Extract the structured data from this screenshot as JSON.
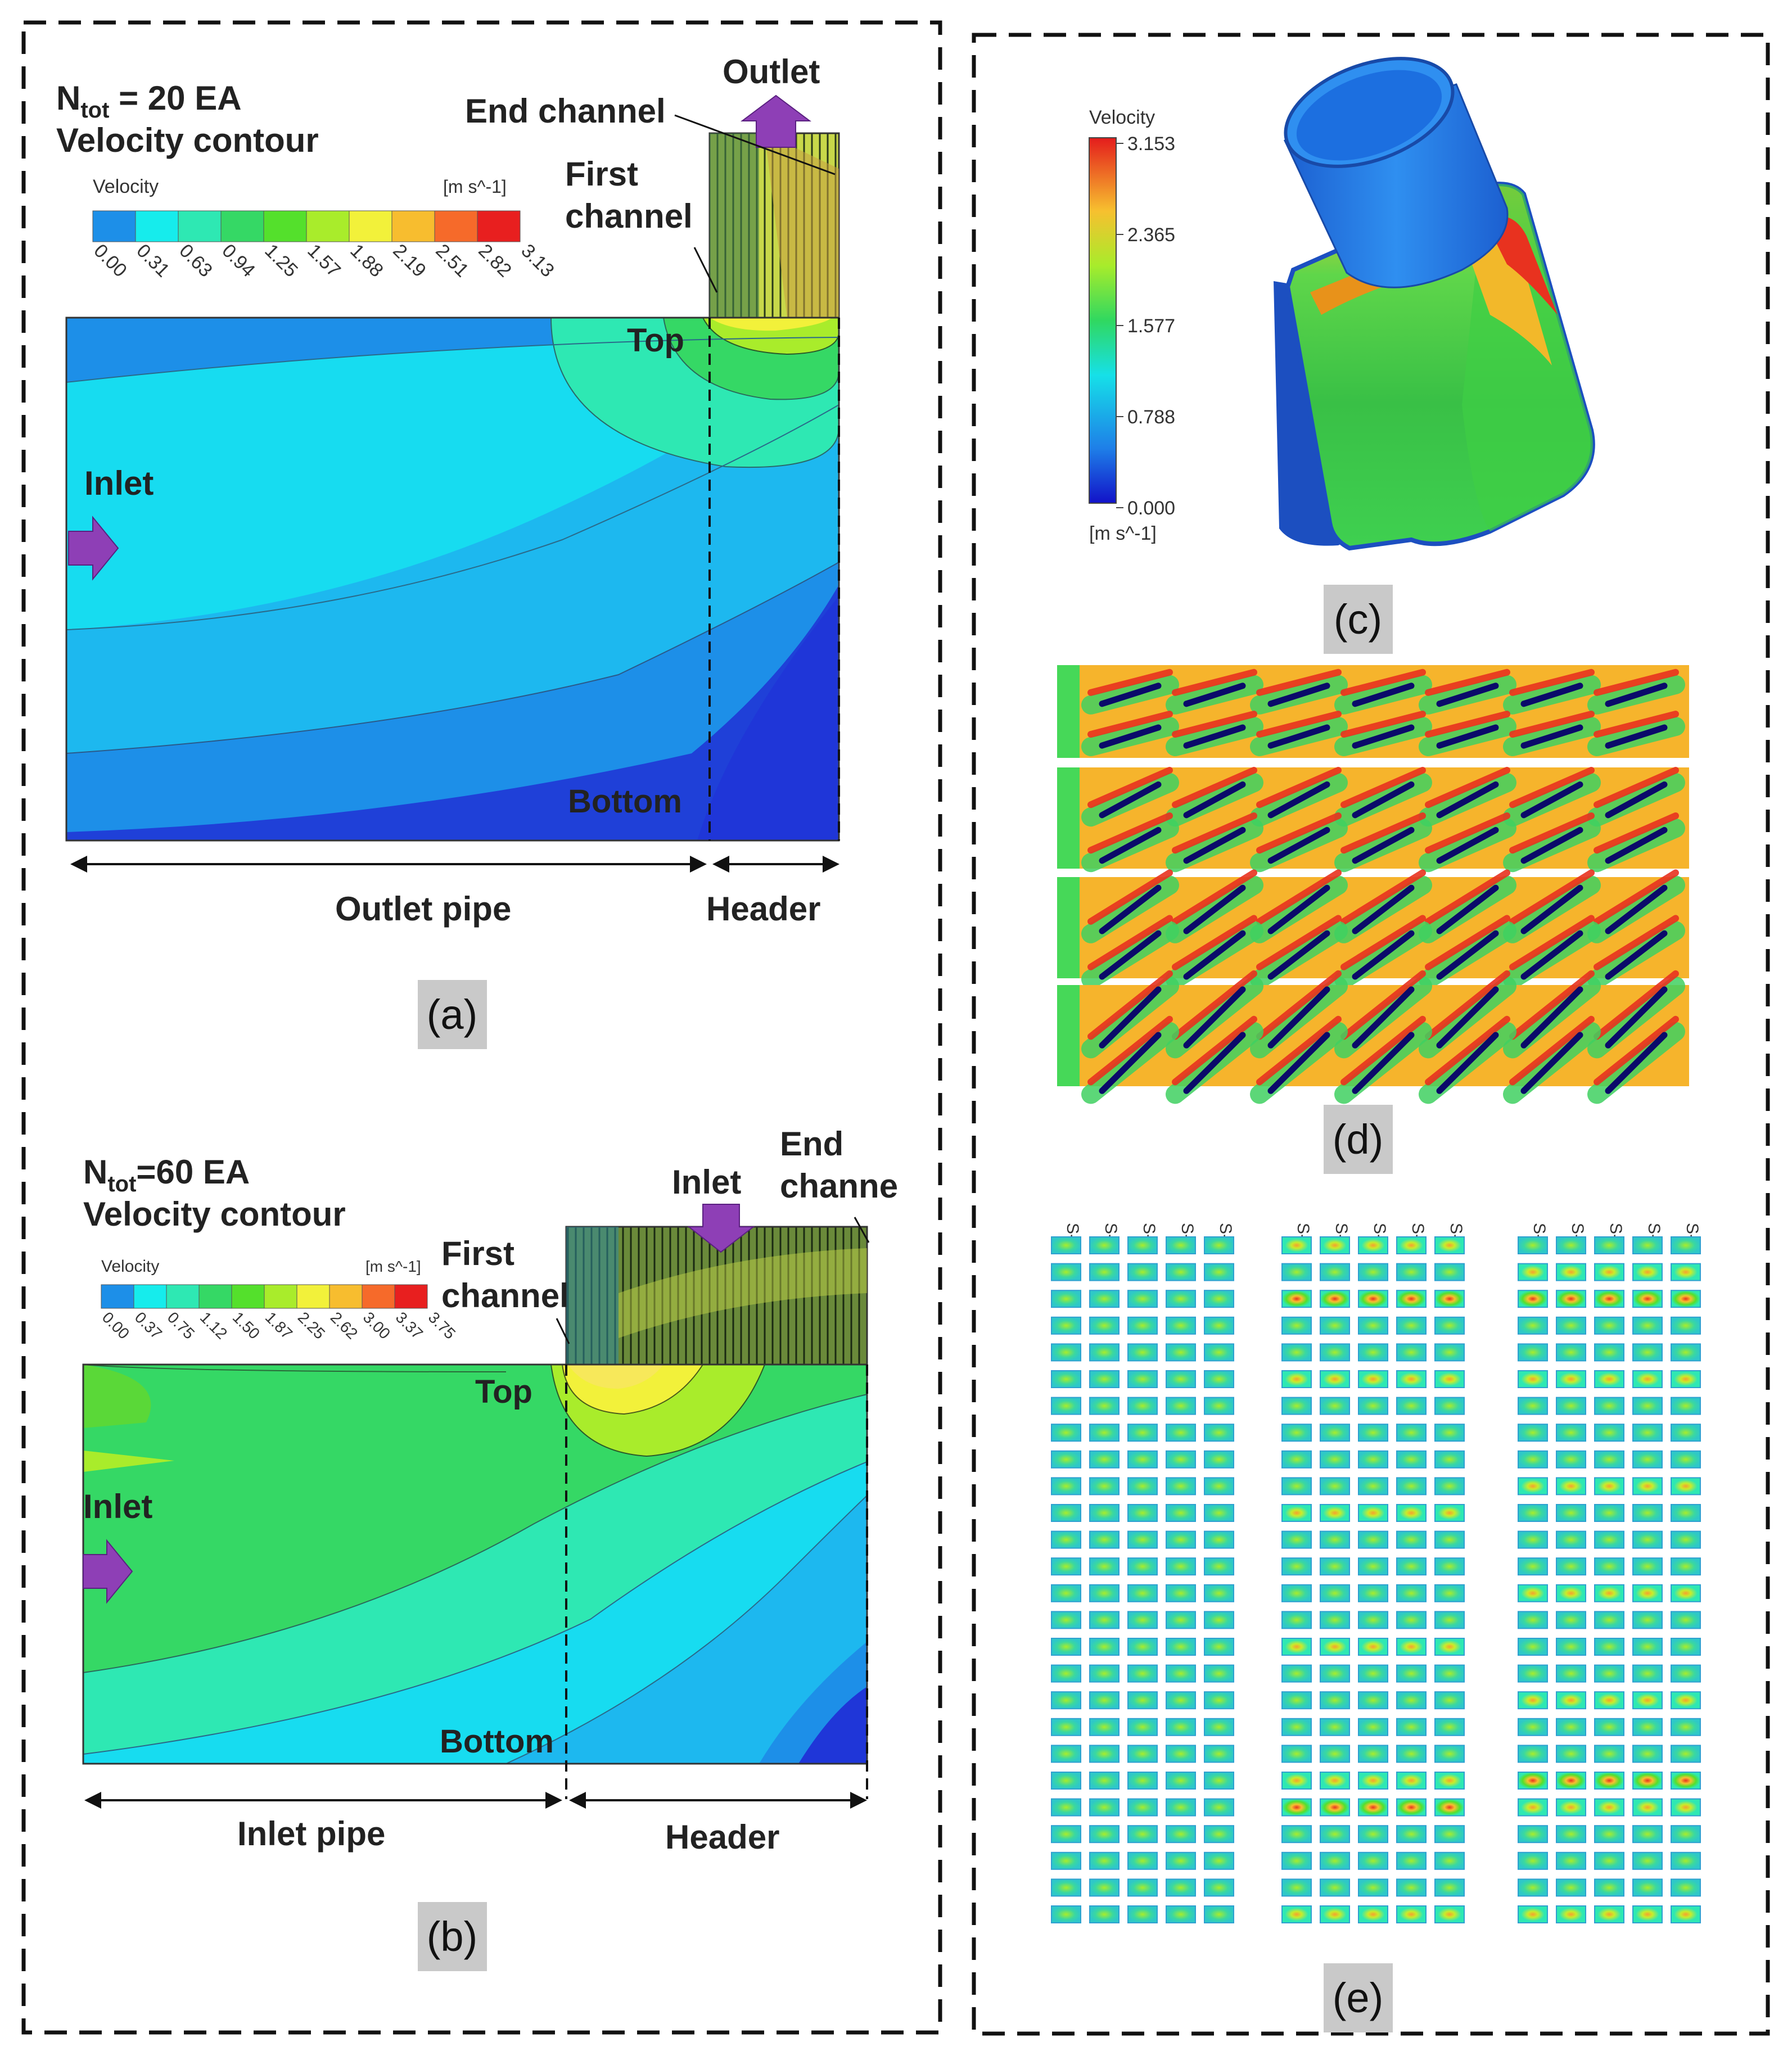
{
  "panel_a": {
    "caption": "(a)",
    "n_label_main": "N",
    "n_label_sub": "tot",
    "n_label_rest": " = 20 EA",
    "subtitle": "Velocity contour",
    "legend_title": "Velocity",
    "legend_unit": "[m s^-1]",
    "ticks": [
      "0.00",
      "0.31",
      "0.63",
      "0.94",
      "1.25",
      "1.57",
      "1.88",
      "2.19",
      "2.51",
      "2.82",
      "3.13"
    ],
    "outlet": "Outlet",
    "end_channel": "End channel",
    "first_channel_1": "First",
    "first_channel_2": "channel",
    "top": "Top",
    "inlet": "Inlet",
    "bottom": "Bottom",
    "pipe": "Outlet pipe",
    "header": "Header"
  },
  "panel_b": {
    "caption": "(b)",
    "n_label_main": "N",
    "n_label_sub": "tot",
    "n_label_rest": "=60 EA",
    "subtitle": "Velocity contour",
    "legend_title": "Velocity",
    "legend_unit": "[m s^-1]",
    "ticks": [
      "0.00",
      "0.37",
      "0.75",
      "1.12",
      "1.50",
      "1.87",
      "2.25",
      "2.62",
      "3.00",
      "3.37",
      "3.75"
    ],
    "inlet_top": "Inlet",
    "end_channel_1": "End",
    "end_channel_2": "channe",
    "first_channel_1": "First",
    "first_channel_2": "channel",
    "top": "Top",
    "inlet": "Inlet",
    "bottom": "Bottom",
    "pipe": "Inlet pipe",
    "header": "Header"
  },
  "panel_c": {
    "caption": "(c)",
    "legend_title": "Velocity",
    "legend_unit": "[m s^-1]",
    "ticks": [
      "3.153",
      "2.365",
      "1.577",
      "0.788",
      "0.000"
    ]
  },
  "panel_d": {
    "caption": "(d)"
  },
  "panel_e": {
    "caption": "(e)",
    "columns": [
      "S-1",
      "S-2",
      "S-3",
      "S-4",
      "S-5"
    ]
  },
  "colors": {
    "c0": "#1f36d8",
    "c1": "#1d8fe8",
    "c2": "#16ecec",
    "c3": "#2ee8b3",
    "c4": "#35d865",
    "c5": "#54e02c",
    "c6": "#a9ec2b",
    "c7": "#f2f13a",
    "c8": "#f7bd2f",
    "c9": "#f66a2a",
    "c10": "#e81f1f",
    "arrow": "#8e3fb6"
  }
}
